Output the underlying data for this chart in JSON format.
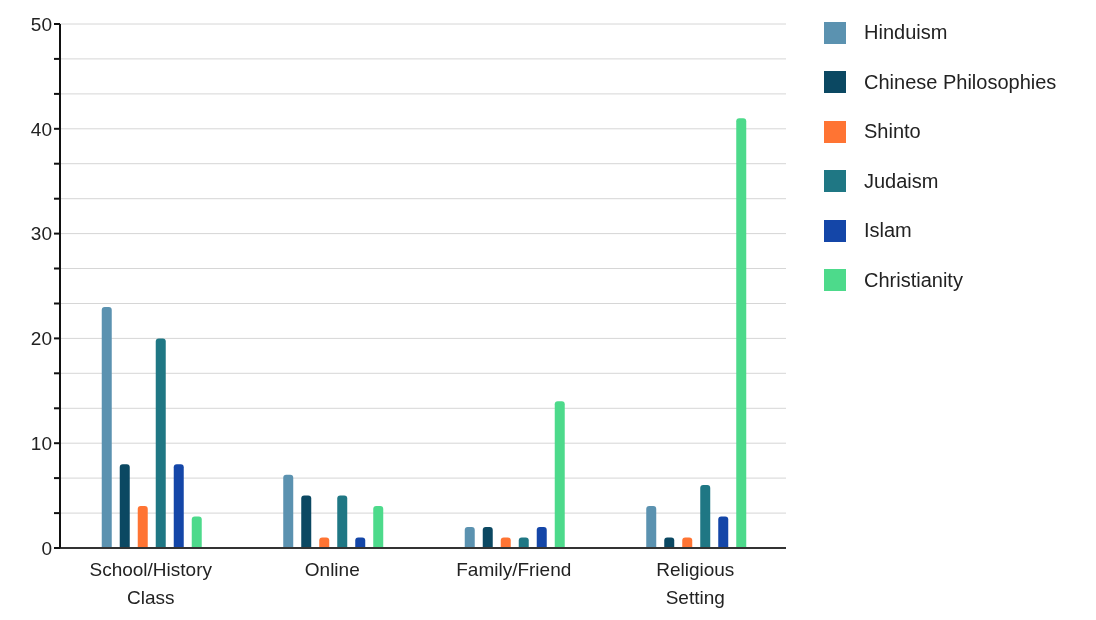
{
  "chart_data": {
    "type": "bar",
    "categories": [
      "School/History Class",
      "Online",
      "Family/Friend",
      "Religious Setting"
    ],
    "series": [
      {
        "name": "Hinduism",
        "color": "#5b92b0",
        "values": [
          23,
          7,
          2,
          4
        ]
      },
      {
        "name": "Chinese Philosophies",
        "color": "#0b4862",
        "values": [
          8,
          5,
          2,
          1
        ]
      },
      {
        "name": "Shinto",
        "color": "#ff7433",
        "values": [
          4,
          1,
          1,
          1
        ]
      },
      {
        "name": "Judaism",
        "color": "#1f7784",
        "values": [
          20,
          5,
          1,
          6
        ]
      },
      {
        "name": "Islam",
        "color": "#1446a8",
        "values": [
          8,
          1,
          2,
          3
        ]
      },
      {
        "name": "Christianity",
        "color": "#4dda8b",
        "values": [
          3,
          4,
          14,
          41
        ]
      }
    ],
    "ylim": [
      0,
      50
    ],
    "yticks": [
      0,
      {
        "value": 3.33,
        "label": null
      },
      {
        "value": 6.67,
        "label": null
      },
      10,
      {
        "value": 13.33,
        "label": null
      },
      {
        "value": 16.67,
        "label": null
      },
      20,
      {
        "value": 23.33,
        "label": null
      },
      {
        "value": 26.67,
        "label": null
      },
      30,
      {
        "value": 33.33,
        "label": null
      },
      {
        "value": 36.67,
        "label": null
      },
      40,
      {
        "value": 43.33,
        "label": null
      },
      {
        "value": 46.67,
        "label": null
      },
      50
    ],
    "grid": "y",
    "legend": "top right"
  }
}
